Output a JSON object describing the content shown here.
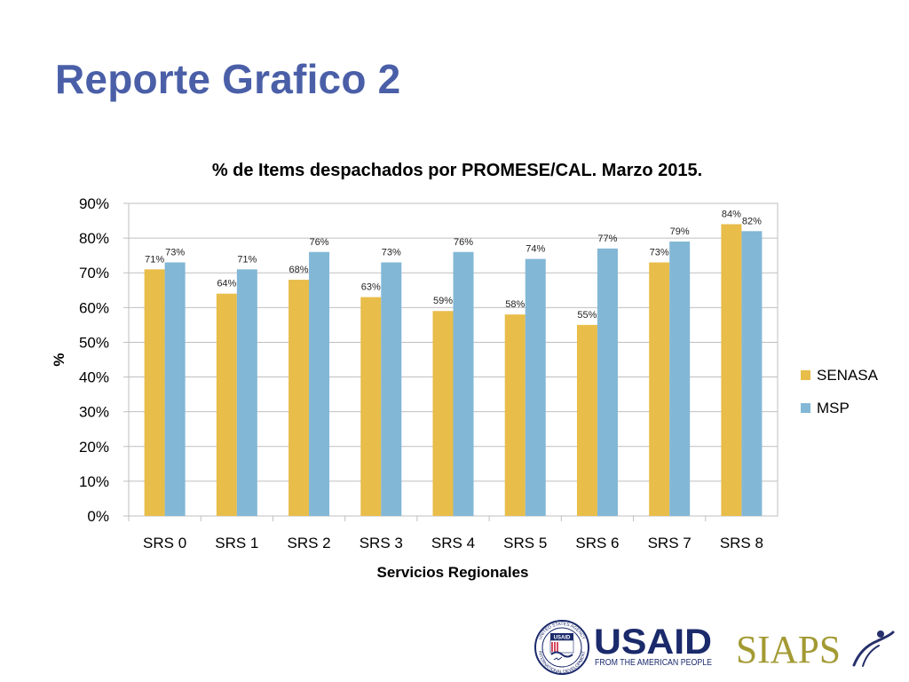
{
  "slide": {
    "title": "Reporte Grafico 2"
  },
  "chart_data": {
    "type": "bar",
    "title": "% de Items despachados por PROMESE/CAL. Marzo 2015.",
    "xlabel": "Servicios Regionales",
    "ylabel": "%",
    "categories": [
      "SRS 0",
      "SRS 1",
      "SRS 2",
      "SRS 3",
      "SRS 4",
      "SRS 5",
      "SRS 6",
      "SRS 7",
      "SRS 8"
    ],
    "yticks": [
      "0%",
      "10%",
      "20%",
      "30%",
      "40%",
      "50%",
      "60%",
      "70%",
      "80%",
      "90%"
    ],
    "ylim": [
      0,
      90
    ],
    "grid": true,
    "legend_position": "right",
    "series": [
      {
        "name": "SENASA",
        "color": "#e8bd4a",
        "values": [
          71,
          64,
          68,
          63,
          59,
          58,
          55,
          73,
          84
        ],
        "labels": [
          "71%",
          "64%",
          "68%",
          "63%",
          "59%",
          "58%",
          "55%",
          "73%",
          "84%"
        ]
      },
      {
        "name": "MSP",
        "color": "#82b7d6",
        "values": [
          73,
          71,
          76,
          73,
          76,
          74,
          77,
          79,
          82
        ],
        "labels": [
          "73%",
          "71%",
          "76%",
          "73%",
          "76%",
          "74%",
          "77%",
          "79%",
          "82%"
        ]
      }
    ]
  },
  "logos": {
    "usaid": {
      "wordmark": "USAID",
      "tagline": "FROM THE AMERICAN PEOPLE",
      "seal_top": "UNITED STATES AGENCY",
      "seal_bottom": "INTERNATIONAL DEVELOPMENT",
      "seal_inner": "USAID"
    },
    "siaps": {
      "wordmark": "SIAPS"
    },
    "colors": {
      "usaid_blue": "#1b2a6b",
      "usaid_red": "#c8102e",
      "siaps_gold": "#a39a33",
      "siaps_navy": "#26306b"
    }
  }
}
